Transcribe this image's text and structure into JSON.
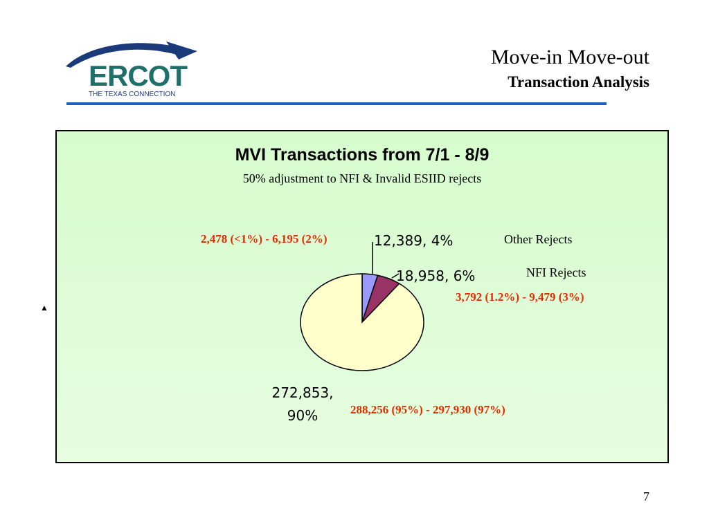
{
  "header": {
    "logo_text": "ERCOT",
    "logo_tagline": "THE TEXAS CONNECTION",
    "title_line1": "Move-in Move-out",
    "title_line2": "Transaction Analysis"
  },
  "colors": {
    "rule": "#1e5fbf",
    "chart_bg": "#dcfdd4",
    "annotation": "#e62a00",
    "logo_teal": "#1f6f6a",
    "logo_navy": "#1b3a7a"
  },
  "chart_data": {
    "type": "pie",
    "title": "MVI Transactions from 7/1 - 8/9",
    "subtitle": "50% adjustment to NFI & Invalid ESIID rejects",
    "slices": [
      {
        "value": 12389,
        "label": "12,389,  4%",
        "color": "#9999ff",
        "category": "Other Rejects",
        "range": "2,478  (<1%) - 6,195 (2%)"
      },
      {
        "value": 18958,
        "label": "18,958,  6%",
        "color": "#993366",
        "category": "NFI Rejects",
        "range": "3,792 (1.2%) - 9,479 (3%)"
      },
      {
        "value": 272853,
        "label_line1": "272,853,",
        "label_line2": "90%",
        "color": "#ffffcc",
        "category": "",
        "range": "288,256 (95%) - 297,930 (97%)"
      }
    ],
    "start_angle_deg": 0,
    "legend": "none"
  },
  "footer": {
    "page_number": "7"
  }
}
